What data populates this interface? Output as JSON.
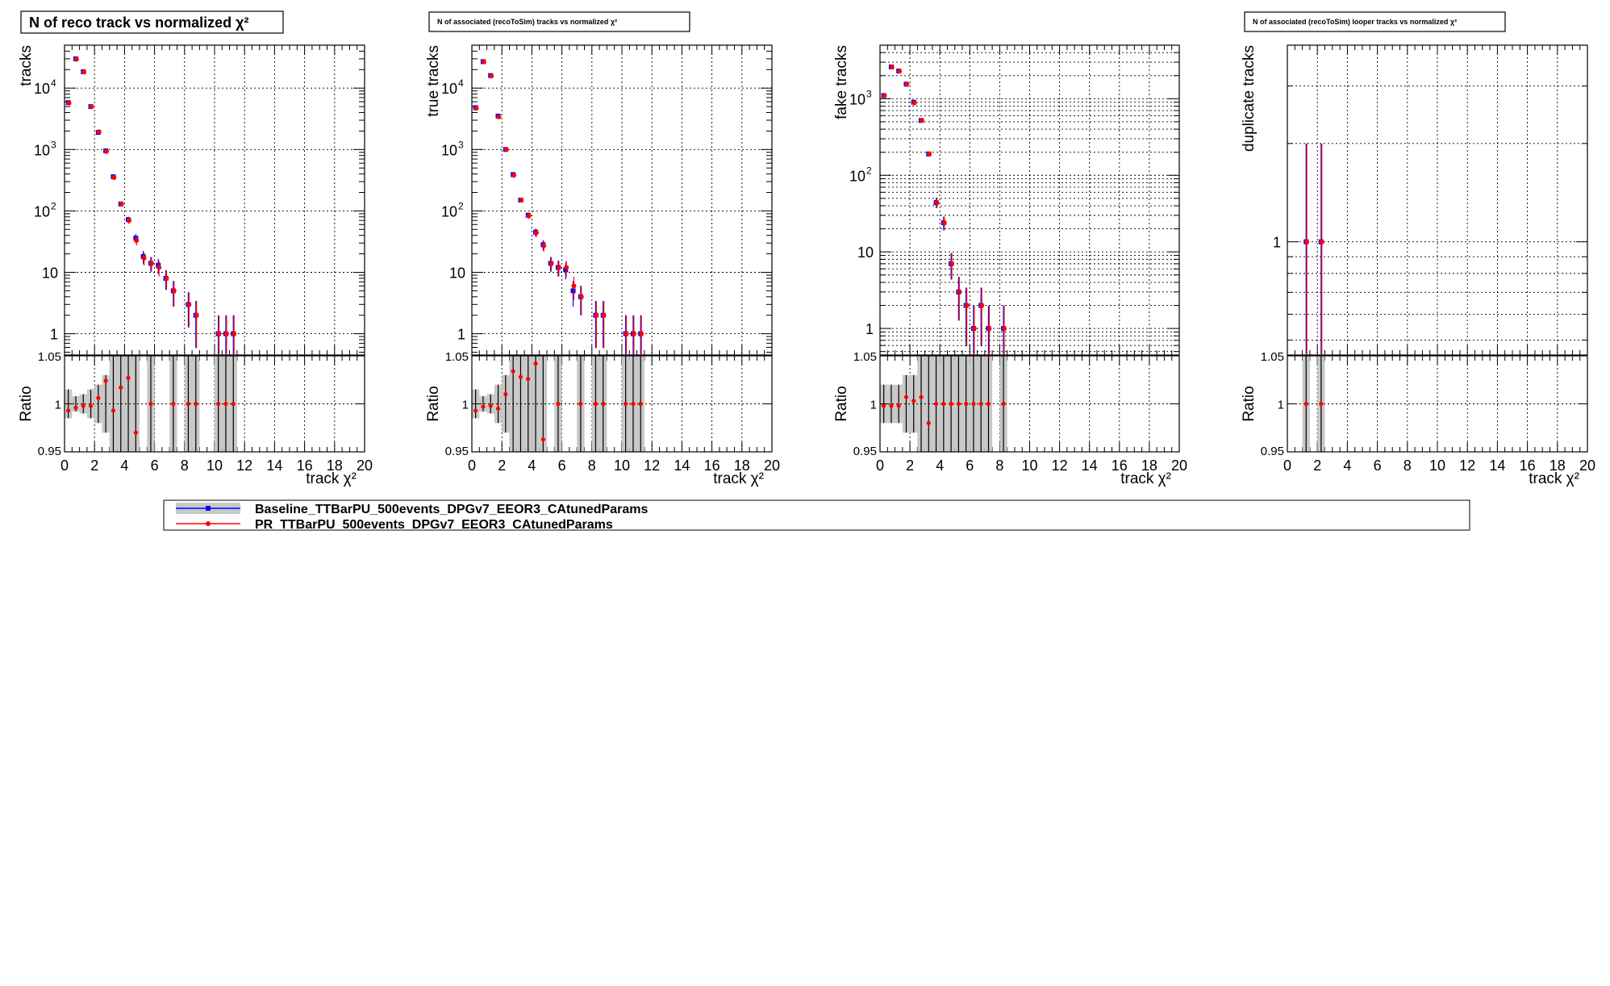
{
  "legend": {
    "entries": [
      {
        "label": "Baseline_TTBarPU_500events_DPGv7_EEOR3_CAtunedParams",
        "color": "#0000ff"
      },
      {
        "label": "PR_TTBarPU_500events_DPGv7_EEOR3_CAtunedParams",
        "color": "#ff0000"
      }
    ]
  },
  "colors": {
    "baseline": "#0000ff",
    "pr": "#ff0000",
    "band": "#c8c8c8",
    "ratio_bar": "#000000"
  },
  "chart_data": [
    {
      "type": "scatter",
      "title": "N of reco track vs normalized  χ²",
      "xlabel": "track   χ²",
      "ylabel": "tracks",
      "ratio_ylabel": "Ratio",
      "xlim": [
        0,
        20
      ],
      "ylim": [
        0.45,
        50000
      ],
      "log_y": true,
      "grid": true,
      "x_ticks": [
        "0",
        "2",
        "4",
        "6",
        "8",
        "10",
        "12",
        "14",
        "16",
        "18",
        "20"
      ],
      "y_ticks": [
        {
          "value": 1,
          "label": "1"
        },
        {
          "value": 10,
          "label": "10"
        },
        {
          "value": 100,
          "label": "10",
          "exp": "2"
        },
        {
          "value": 1000,
          "label": "10",
          "exp": "3"
        },
        {
          "value": 10000,
          "label": "10",
          "exp": "4"
        }
      ],
      "ratio_ylim": [
        0.95,
        1.05
      ],
      "ratio_ticks": [
        "0.95",
        "1",
        "1.05"
      ],
      "bin_width": 0.5,
      "series": [
        {
          "name": "Baseline_TTBarPU_500events_DPGv7_EEOR3_CAtunedParams",
          "x": [
            0.25,
            0.75,
            1.25,
            1.75,
            2.25,
            2.75,
            3.25,
            3.75,
            4.25,
            4.75,
            5.25,
            5.75,
            6.25,
            6.75,
            7.25,
            8.25,
            8.75,
            10.25,
            10.75,
            11.25
          ],
          "values": [
            5800,
            30000,
            18500,
            5000,
            1900,
            950,
            360,
            130,
            72,
            36,
            18,
            14,
            13,
            8,
            5,
            3,
            2,
            1,
            1,
            1
          ]
        },
        {
          "name": "PR_TTBarPU_500events_DPGv7_EEOR3_CAtunedParams",
          "x": [
            0.25,
            0.75,
            1.25,
            1.75,
            2.25,
            2.75,
            3.25,
            3.75,
            4.25,
            4.75,
            5.25,
            5.75,
            6.25,
            6.75,
            7.25,
            8.25,
            8.75,
            10.25,
            10.75,
            11.25
          ],
          "values": [
            5700,
            29500,
            18300,
            5000,
            1950,
            930,
            350,
            130,
            70,
            33,
            17,
            14,
            12,
            8,
            5,
            3,
            2,
            1,
            1,
            1
          ]
        }
      ],
      "ratio": {
        "x": [
          0.25,
          0.75,
          1.25,
          1.75,
          2.25,
          2.75,
          3.25,
          3.75,
          4.25,
          4.75,
          5.75,
          7.25,
          8.25,
          8.75,
          10.25,
          10.75,
          11.25
        ],
        "values": [
          0.993,
          0.996,
          0.998,
          0.998,
          1.006,
          1.024,
          0.993,
          1.017,
          1.027,
          0.97,
          1.0,
          1.0,
          1.0,
          1.0,
          1.0,
          1.0,
          1.0
        ],
        "band": [
          0.015,
          0.008,
          0.01,
          0.015,
          0.02,
          0.03,
          0.05,
          0.07,
          0.07,
          0.1,
          0.12,
          0.12,
          0.12,
          0.12,
          0.12,
          0.12,
          0.12
        ]
      }
    },
    {
      "type": "scatter",
      "title": "N of associated (recoToSim) tracks vs normalized          χ²",
      "xlabel": "track   χ²",
      "ylabel": "true tracks",
      "ratio_ylabel": "Ratio",
      "xlim": [
        0,
        20
      ],
      "ylim": [
        0.45,
        50000
      ],
      "log_y": true,
      "grid": true,
      "x_ticks": [
        "0",
        "2",
        "4",
        "6",
        "8",
        "10",
        "12",
        "14",
        "16",
        "18",
        "20"
      ],
      "y_ticks": [
        {
          "value": 1,
          "label": "1"
        },
        {
          "value": 10,
          "label": "10"
        },
        {
          "value": 100,
          "label": "10",
          "exp": "2"
        },
        {
          "value": 1000,
          "label": "10",
          "exp": "3"
        },
        {
          "value": 10000,
          "label": "10",
          "exp": "4"
        }
      ],
      "ratio_ylim": [
        0.95,
        1.05
      ],
      "ratio_ticks": [
        "0.95",
        "1",
        "1.05"
      ],
      "bin_width": 0.5,
      "series": [
        {
          "name": "Baseline_TTBarPU_500events_DPGv7_EEOR3_CAtunedParams",
          "x": [
            0.25,
            0.75,
            1.25,
            1.75,
            2.25,
            2.75,
            3.25,
            3.75,
            4.25,
            4.75,
            5.25,
            5.75,
            6.25,
            6.75,
            7.25,
            8.25,
            8.75,
            10.25,
            10.75,
            11.25
          ],
          "values": [
            4800,
            27000,
            16000,
            3500,
            1000,
            390,
            150,
            85,
            45,
            28,
            14,
            12,
            11,
            5,
            4,
            2,
            2,
            1,
            1,
            1
          ]
        },
        {
          "name": "PR_TTBarPU_500events_DPGv7_EEOR3_CAtunedParams",
          "x": [
            0.25,
            0.75,
            1.25,
            1.75,
            2.25,
            2.75,
            3.25,
            3.75,
            4.25,
            4.75,
            5.25,
            5.75,
            6.25,
            6.75,
            7.25,
            8.25,
            8.75,
            10.25,
            10.75,
            11.25
          ],
          "values": [
            4700,
            26800,
            15800,
            3400,
            1000,
            380,
            150,
            83,
            44,
            27,
            14,
            12,
            12,
            6,
            4,
            2,
            2,
            1,
            1,
            1
          ]
        }
      ],
      "ratio": {
        "x": [
          0.25,
          0.75,
          1.25,
          1.75,
          2.25,
          2.75,
          3.25,
          3.75,
          4.25,
          4.75,
          5.75,
          7.25,
          8.25,
          8.75,
          10.25,
          10.75,
          11.25
        ],
        "values": [
          0.993,
          0.997,
          0.998,
          0.995,
          1.01,
          1.034,
          1.028,
          1.026,
          1.042,
          0.963,
          1.0,
          1.0,
          1.0,
          1.0,
          1.0,
          1.0,
          1.0
        ],
        "band": [
          0.015,
          0.008,
          0.01,
          0.02,
          0.03,
          0.05,
          0.07,
          0.09,
          0.1,
          0.12,
          0.12,
          0.12,
          0.12,
          0.12,
          0.12,
          0.12,
          0.12
        ]
      }
    },
    {
      "type": "scatter",
      "title": "",
      "xlabel": "track   χ²",
      "ylabel": "fake tracks",
      "ratio_ylabel": "Ratio",
      "xlim": [
        0,
        20
      ],
      "ylim": [
        0.45,
        5000
      ],
      "log_y": true,
      "grid": true,
      "x_ticks": [
        "0",
        "2",
        "4",
        "6",
        "8",
        "10",
        "12",
        "14",
        "16",
        "18",
        "20"
      ],
      "y_ticks": [
        {
          "value": 1,
          "label": "1"
        },
        {
          "value": 10,
          "label": "10"
        },
        {
          "value": 100,
          "label": "10",
          "exp": "2"
        },
        {
          "value": 1000,
          "label": "10",
          "exp": "3"
        }
      ],
      "ratio_ylim": [
        0.95,
        1.05
      ],
      "ratio_ticks": [
        "0.95",
        "1",
        "1.05"
      ],
      "bin_width": 0.5,
      "series": [
        {
          "name": "Baseline_TTBarPU_500events_DPGv7_EEOR3_CAtunedParams",
          "x": [
            0.25,
            0.75,
            1.25,
            1.75,
            2.25,
            2.75,
            3.25,
            3.75,
            4.25,
            4.75,
            5.25,
            5.75,
            6.25,
            6.75,
            7.25,
            8.25
          ],
          "values": [
            1100,
            2600,
            2300,
            1550,
            900,
            520,
            190,
            44,
            24,
            7,
            3,
            2,
            1,
            2,
            1,
            1
          ]
        },
        {
          "name": "PR_TTBarPU_500events_DPGv7_EEOR3_CAtunedParams",
          "x": [
            0.25,
            0.75,
            1.25,
            1.75,
            2.25,
            2.75,
            3.25,
            3.75,
            4.25,
            4.75,
            5.25,
            5.75,
            6.25,
            6.75,
            7.25,
            8.25
          ],
          "values": [
            1090,
            2580,
            2290,
            1540,
            880,
            520,
            190,
            44,
            24,
            7,
            3,
            2,
            1,
            2,
            1,
            1
          ]
        }
      ],
      "ratio": {
        "x": [
          0.25,
          0.75,
          1.25,
          1.75,
          2.25,
          2.75,
          3.25,
          3.75,
          4.25,
          4.75,
          5.25,
          5.75,
          6.25,
          6.75,
          7.25,
          8.25
        ],
        "values": [
          0.998,
          0.998,
          0.998,
          1.007,
          1.003,
          1.007,
          0.98,
          1.0,
          1.0,
          1.0,
          1.0,
          1.0,
          1.0,
          1.0,
          1.0,
          1.0
        ],
        "band": [
          0.02,
          0.02,
          0.02,
          0.03,
          0.03,
          0.05,
          0.07,
          0.12,
          0.12,
          0.12,
          0.12,
          0.12,
          0.12,
          0.12,
          0.12,
          0.12
        ]
      }
    },
    {
      "type": "scatter",
      "title": "N of associated (recoToSim) looper tracks vs normalized   χ²",
      "xlabel": "track   χ²",
      "ylabel": "duplicate tracks",
      "ratio_ylabel": "Ratio",
      "xlim": [
        0,
        20
      ],
      "ylim": [
        0.45,
        4
      ],
      "log_y": true,
      "grid": true,
      "x_ticks": [
        "0",
        "2",
        "4",
        "6",
        "8",
        "10",
        "12",
        "14",
        "16",
        "18",
        "20"
      ],
      "y_ticks": [
        {
          "value": 1,
          "label": "1"
        }
      ],
      "ratio_ylim": [
        0.95,
        1.05
      ],
      "ratio_ticks": [
        "0.95",
        "1",
        "1.05"
      ],
      "bin_width": 0.5,
      "series": [
        {
          "name": "Baseline_TTBarPU_500events_DPGv7_EEOR3_CAtunedParams",
          "x": [
            1.25,
            2.25
          ],
          "values": [
            1,
            1
          ]
        },
        {
          "name": "PR_TTBarPU_500events_DPGv7_EEOR3_CAtunedParams",
          "x": [
            1.25,
            2.25
          ],
          "values": [
            1,
            1
          ]
        }
      ],
      "ratio": {
        "x": [
          1.25,
          2.25
        ],
        "values": [
          1.0,
          1.0
        ],
        "band": [
          0.12,
          0.12
        ]
      }
    }
  ]
}
